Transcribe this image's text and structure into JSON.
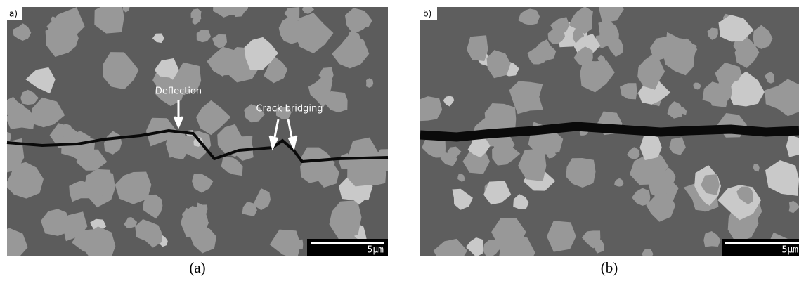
{
  "panels": [
    {
      "label": "a)",
      "annotations": [
        "Deflection",
        "Crack bridging"
      ],
      "scale_bar": "5μm",
      "caption": "(a)"
    },
    {
      "label": "b)",
      "scale_bar": "5μm",
      "caption": "(b)"
    }
  ]
}
